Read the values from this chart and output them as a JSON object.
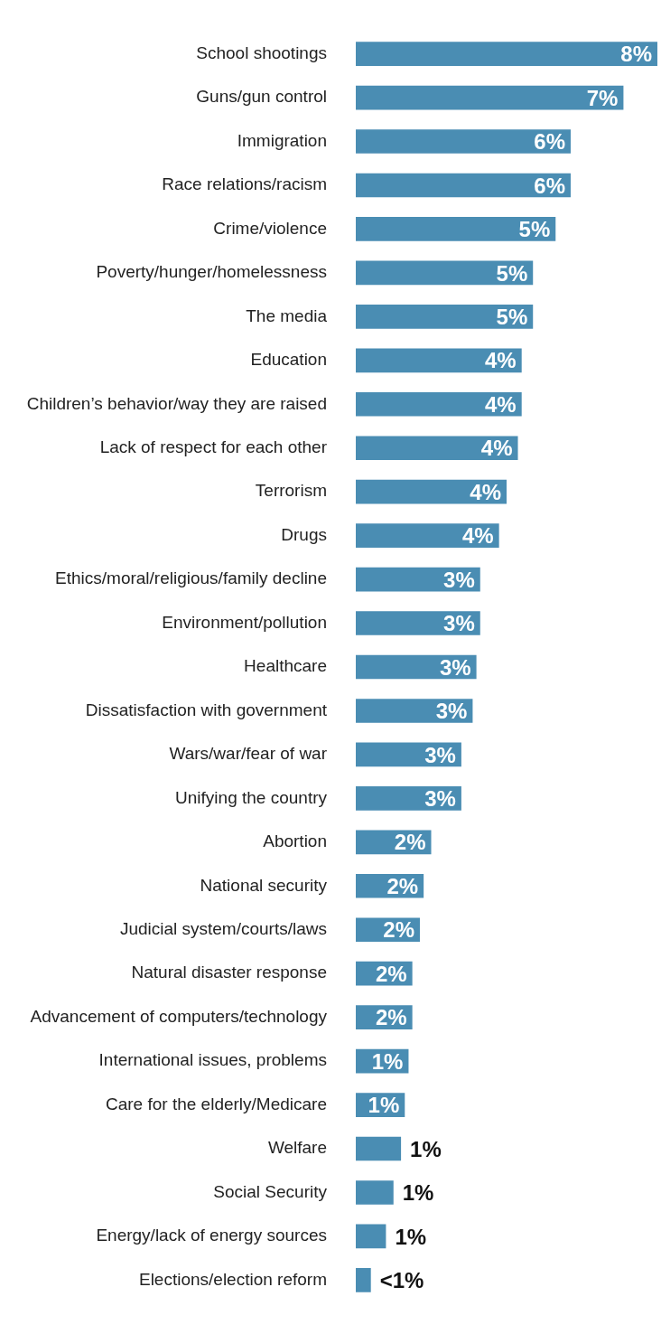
{
  "chart_data": {
    "type": "bar",
    "orientation": "horizontal",
    "categories": [
      "School shootings",
      "Guns/gun control",
      "Immigration",
      "Race relations/racism",
      "Crime/violence",
      "Poverty/hunger/homelessness",
      "The media",
      "Education",
      "Children’s behavior/way they are raised",
      "Lack of respect for each other",
      "Terrorism",
      "Drugs",
      "Ethics/moral/religious/family decline",
      "Environment/pollution",
      "Healthcare",
      "Dissatisfaction with government",
      "Wars/war/fear of war",
      "Unifying the country",
      "Abortion",
      "National security",
      "Judicial system/courts/laws",
      "Natural disaster response",
      "Advancement of computers/technology",
      "International issues, problems",
      "Care for the elderly/Medicare",
      "Welfare",
      "Social Security",
      "Energy/lack of energy sources",
      "Elections/election reform"
    ],
    "values": [
      8.0,
      7.1,
      5.7,
      5.7,
      5.3,
      4.7,
      4.7,
      4.4,
      4.4,
      4.3,
      4.0,
      3.8,
      3.3,
      3.3,
      3.2,
      3.1,
      2.8,
      2.8,
      2.0,
      1.8,
      1.7,
      1.5,
      1.5,
      1.4,
      1.3,
      1.2,
      1.0,
      0.8,
      0.4
    ],
    "value_labels": [
      "8%",
      "7%",
      "6%",
      "6%",
      "5%",
      "5%",
      "5%",
      "4%",
      "4%",
      "4%",
      "4%",
      "4%",
      "3%",
      "3%",
      "3%",
      "3%",
      "3%",
      "3%",
      "2%",
      "2%",
      "2%",
      "2%",
      "2%",
      "1%",
      "1%",
      "1%",
      "1%",
      "1%",
      "<1%"
    ],
    "color": "#4a8db3",
    "grid": false,
    "legend": false
  }
}
